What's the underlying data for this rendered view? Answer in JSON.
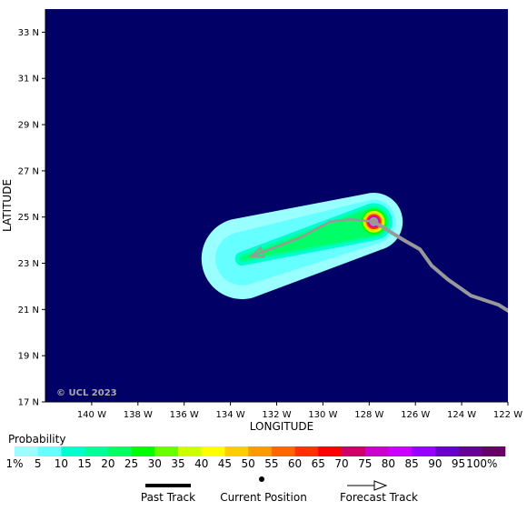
{
  "map": {
    "credit": "© UCL 2023",
    "xlabel": "LONGITUDE",
    "ylabel": "LATITUDE",
    "lon_range": [
      -142,
      -122
    ],
    "lat_range": [
      17,
      34
    ],
    "lon_ticks": [
      {
        "value": -140,
        "label": "140 W"
      },
      {
        "value": -138,
        "label": "138 W"
      },
      {
        "value": -136,
        "label": "136 W"
      },
      {
        "value": -134,
        "label": "134 W"
      },
      {
        "value": -132,
        "label": "132 W"
      },
      {
        "value": -130,
        "label": "130 W"
      },
      {
        "value": -128,
        "label": "128 W"
      },
      {
        "value": -126,
        "label": "126 W"
      },
      {
        "value": -124,
        "label": "124 W"
      },
      {
        "value": -122,
        "label": "122 W"
      }
    ],
    "lat_ticks": [
      {
        "value": 33,
        "label": "33 N"
      },
      {
        "value": 31,
        "label": "31 N"
      },
      {
        "value": 29,
        "label": "29 N"
      },
      {
        "value": 27,
        "label": "27 N"
      },
      {
        "value": 25,
        "label": "25 N"
      },
      {
        "value": 23,
        "label": "23 N"
      },
      {
        "value": 21,
        "label": "21 N"
      },
      {
        "value": 19,
        "label": "19 N"
      },
      {
        "value": 17,
        "label": "17 N"
      }
    ],
    "colors": {
      "ocean": "#000066",
      "track": "#999999",
      "forecast_arrow": "#999999"
    },
    "current_position": {
      "lon": -127.8,
      "lat": 24.8
    },
    "past_track": [
      {
        "lon": -127.8,
        "lat": 24.8
      },
      {
        "lon": -126.5,
        "lat": 24.0
      },
      {
        "lon": -125.8,
        "lat": 23.6
      },
      {
        "lon": -125.3,
        "lat": 22.9
      },
      {
        "lon": -124.6,
        "lat": 22.3
      },
      {
        "lon": -123.6,
        "lat": 21.6
      },
      {
        "lon": -122.4,
        "lat": 21.2
      },
      {
        "lon": -121.6,
        "lat": 20.7
      }
    ],
    "forecast_track": [
      {
        "lon": -127.8,
        "lat": 24.8
      },
      {
        "lon": -128.8,
        "lat": 24.9
      },
      {
        "lon": -129.7,
        "lat": 24.8
      },
      {
        "lon": -131.0,
        "lat": 24.1
      },
      {
        "lon": -133.1,
        "lat": 23.3
      }
    ],
    "probability_swath": {
      "axis_start": {
        "lon": -133.5,
        "lat": 23.2
      },
      "axis_end": {
        "lon": -127.8,
        "lat": 24.8
      },
      "bands": [
        {
          "percent": 1,
          "radius_start_deg": 1.75,
          "radius_end_deg": 1.25
        },
        {
          "percent": 5,
          "radius_start_deg": 1.15,
          "radius_end_deg": 0.95
        },
        {
          "percent": 10,
          "radius_start_deg": 0.3,
          "radius_end_deg": 0.8
        },
        {
          "percent": 15,
          "radius_start_deg": 0.15,
          "radius_end_deg": 0.68
        },
        {
          "percent": 20,
          "radius_start_deg": 0.05,
          "radius_end_deg": 0.6
        }
      ],
      "core": [
        {
          "percent": 25,
          "radius_deg": 0.55
        },
        {
          "percent": 35,
          "radius_deg": 0.47
        },
        {
          "percent": 45,
          "radius_deg": 0.4
        },
        {
          "percent": 60,
          "radius_deg": 0.33
        },
        {
          "percent": 75,
          "radius_deg": 0.25
        },
        {
          "percent": 85,
          "radius_deg": 0.17
        },
        {
          "percent": 95,
          "radius_deg": 0.09
        }
      ]
    }
  },
  "legend": {
    "title": "Probability",
    "bins": [
      {
        "label": "1%",
        "color": "#99ffff"
      },
      {
        "label": "5",
        "color": "#66ffff"
      },
      {
        "label": "10",
        "color": "#00ffcc"
      },
      {
        "label": "15",
        "color": "#00ff99"
      },
      {
        "label": "20",
        "color": "#00ff66"
      },
      {
        "label": "25",
        "color": "#00ff00"
      },
      {
        "label": "30",
        "color": "#66ff00"
      },
      {
        "label": "35",
        "color": "#ccff00"
      },
      {
        "label": "40",
        "color": "#ffff00"
      },
      {
        "label": "45",
        "color": "#ffcc00"
      },
      {
        "label": "50",
        "color": "#ff9900"
      },
      {
        "label": "55",
        "color": "#ff6600"
      },
      {
        "label": "60",
        "color": "#ff3300"
      },
      {
        "label": "65",
        "color": "#ff0000"
      },
      {
        "label": "70",
        "color": "#cc0066"
      },
      {
        "label": "75",
        "color": "#cc00cc"
      },
      {
        "label": "80",
        "color": "#cc00ff"
      },
      {
        "label": "85",
        "color": "#9900ff"
      },
      {
        "label": "90",
        "color": "#6600cc"
      },
      {
        "label": "95",
        "color": "#660099"
      },
      {
        "label": "100%",
        "color": "#660066"
      }
    ],
    "symbols": {
      "past_track": "Past Track",
      "current_position": "Current Position",
      "forecast_track": "Forecast Track"
    }
  }
}
